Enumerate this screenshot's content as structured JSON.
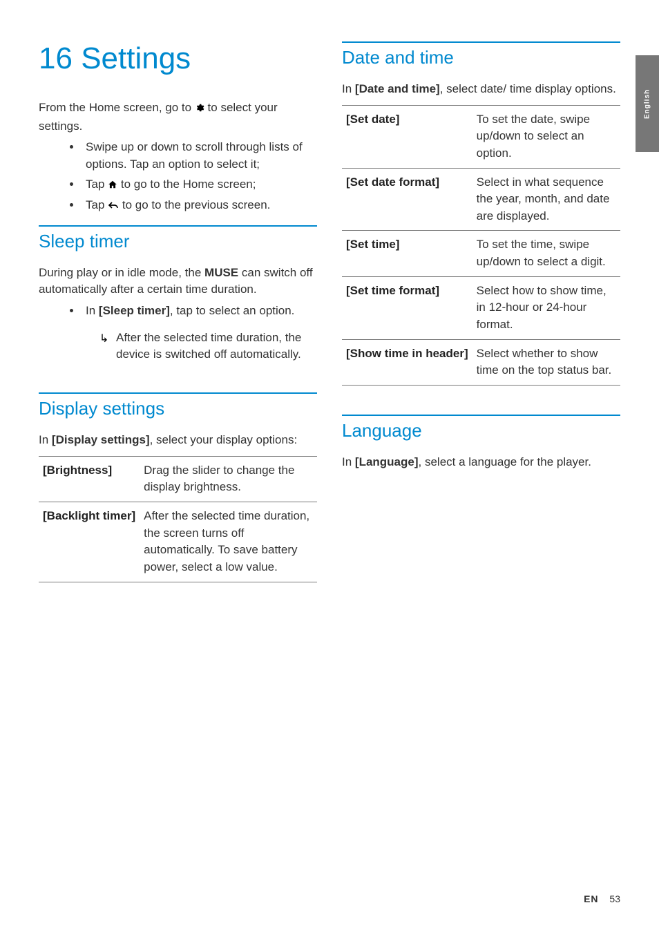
{
  "side_tab": "English",
  "title_num": "16",
  "title_text": "Settings",
  "accent_color": "#0089cf",
  "left": {
    "intro_before": "From the Home screen, go to ",
    "intro_after": " to select your settings.",
    "bullets": {
      "b1": "Swipe up or down to scroll through lists of options. Tap an option to select it;",
      "b2_before": "Tap ",
      "b2_after": " to go to the Home screen;",
      "b3_before": "Tap ",
      "b3_after": " to go to the previous screen."
    },
    "sleep": {
      "heading": "Sleep timer",
      "p_before": "During play or in idle mode, the ",
      "p_strong": "MUSE",
      "p_after": " can switch off automatically after a certain time duration.",
      "li_before": "In ",
      "li_strong": "[Sleep timer]",
      "li_after": ", tap to select an option.",
      "sub": "After the selected time duration, the device is switched off automatically."
    },
    "display": {
      "heading": "Display settings",
      "p_before": "In ",
      "p_strong": "[Display settings]",
      "p_after": ", select your display options:",
      "rows": [
        {
          "key": "[Brightness]",
          "val": "Drag the slider to change the display brightness."
        },
        {
          "key": "[Backlight timer]",
          "val": "After the selected time duration, the screen turns off automatically. To save battery power, select a low value."
        }
      ]
    }
  },
  "right": {
    "datetime": {
      "heading": "Date and time",
      "p_before": "In ",
      "p_strong": "[Date and time]",
      "p_after": ", select date/ time display options.",
      "rows": [
        {
          "key": "[Set date]",
          "val": "To set the date, swipe up/down to select an option."
        },
        {
          "key": "[Set date format]",
          "val": "Select in what sequence the year, month, and date are displayed."
        },
        {
          "key": "[Set time]",
          "val": "To set the time, swipe up/down to select a digit."
        },
        {
          "key": "[Set time format]",
          "val": "Select how to show time, in 12-hour or 24-hour format."
        },
        {
          "key": "[Show time in header]",
          "val": "Select whether to show time on the top status bar."
        }
      ]
    },
    "language": {
      "heading": "Language",
      "p_before": "In ",
      "p_strong": "[Language]",
      "p_after": ", select a language for the player."
    }
  },
  "footer": {
    "lang": "EN",
    "page": "53"
  }
}
